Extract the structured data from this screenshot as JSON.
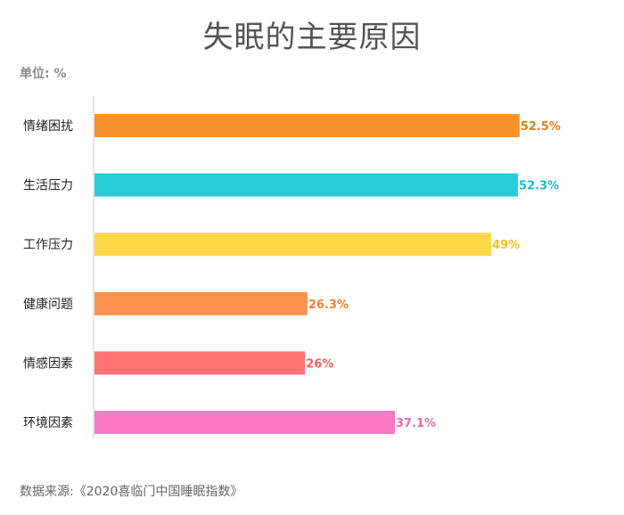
{
  "title": "失眠的主要原因",
  "unit_label": "单位: %",
  "source": "数据来源:《2020喜临门中国睡眠指数》",
  "colors": {
    "axis": "#cccccc"
  },
  "chart_data": {
    "type": "bar",
    "orientation": "horizontal",
    "title": "失眠的主要原因",
    "xlabel": "",
    "ylabel": "",
    "xlim": [
      0,
      60
    ],
    "grid": false,
    "legend": "none",
    "categories": [
      "情绪困扰",
      "生活压力",
      "工作压力",
      "健康问题",
      "情感因素",
      "环境因素"
    ],
    "values": [
      52.5,
      52.3,
      49,
      26.3,
      26,
      37.1
    ],
    "value_labels": [
      "52.5%",
      "52.3%",
      "49%",
      "26.3%",
      "26%",
      "37.1%"
    ],
    "bar_colors": [
      "#F7922A",
      "#26CDD9",
      "#FFD84A",
      "#FF924E",
      "#FF7272",
      "#FB78C3"
    ],
    "label_colors": [
      "#E07E1A",
      "#20B8C4",
      "#F2C020",
      "#F28033",
      "#F26060",
      "#E86AB0"
    ]
  }
}
